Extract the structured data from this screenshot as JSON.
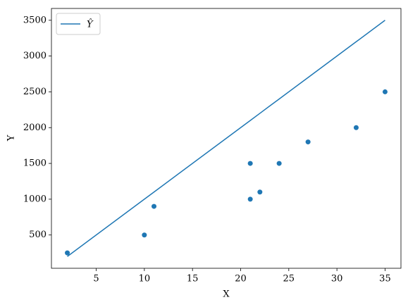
{
  "chart_data": {
    "type": "scatter",
    "x": [
      2,
      10,
      11,
      21,
      21,
      22,
      24,
      27,
      32,
      35
    ],
    "values": [
      250,
      500,
      900,
      1000,
      1500,
      1100,
      1500,
      1800,
      2000,
      2500
    ],
    "color": "#1f77b4",
    "line": {
      "name": "Ŷ",
      "color": "#1f77b4",
      "values": [
        200,
        1000,
        1100,
        2100,
        2100,
        2200,
        2400,
        2700,
        3200,
        3500
      ]
    },
    "xlabel": "X",
    "ylabel": "Y",
    "xlim": [
      0.35,
      36.65
    ],
    "ylim": [
      35,
      3665
    ],
    "xticks": [
      5,
      10,
      15,
      20,
      25,
      30,
      35
    ],
    "yticks": [
      500,
      1000,
      1500,
      2000,
      2500,
      3000,
      3500
    ],
    "legend": "upper left"
  }
}
